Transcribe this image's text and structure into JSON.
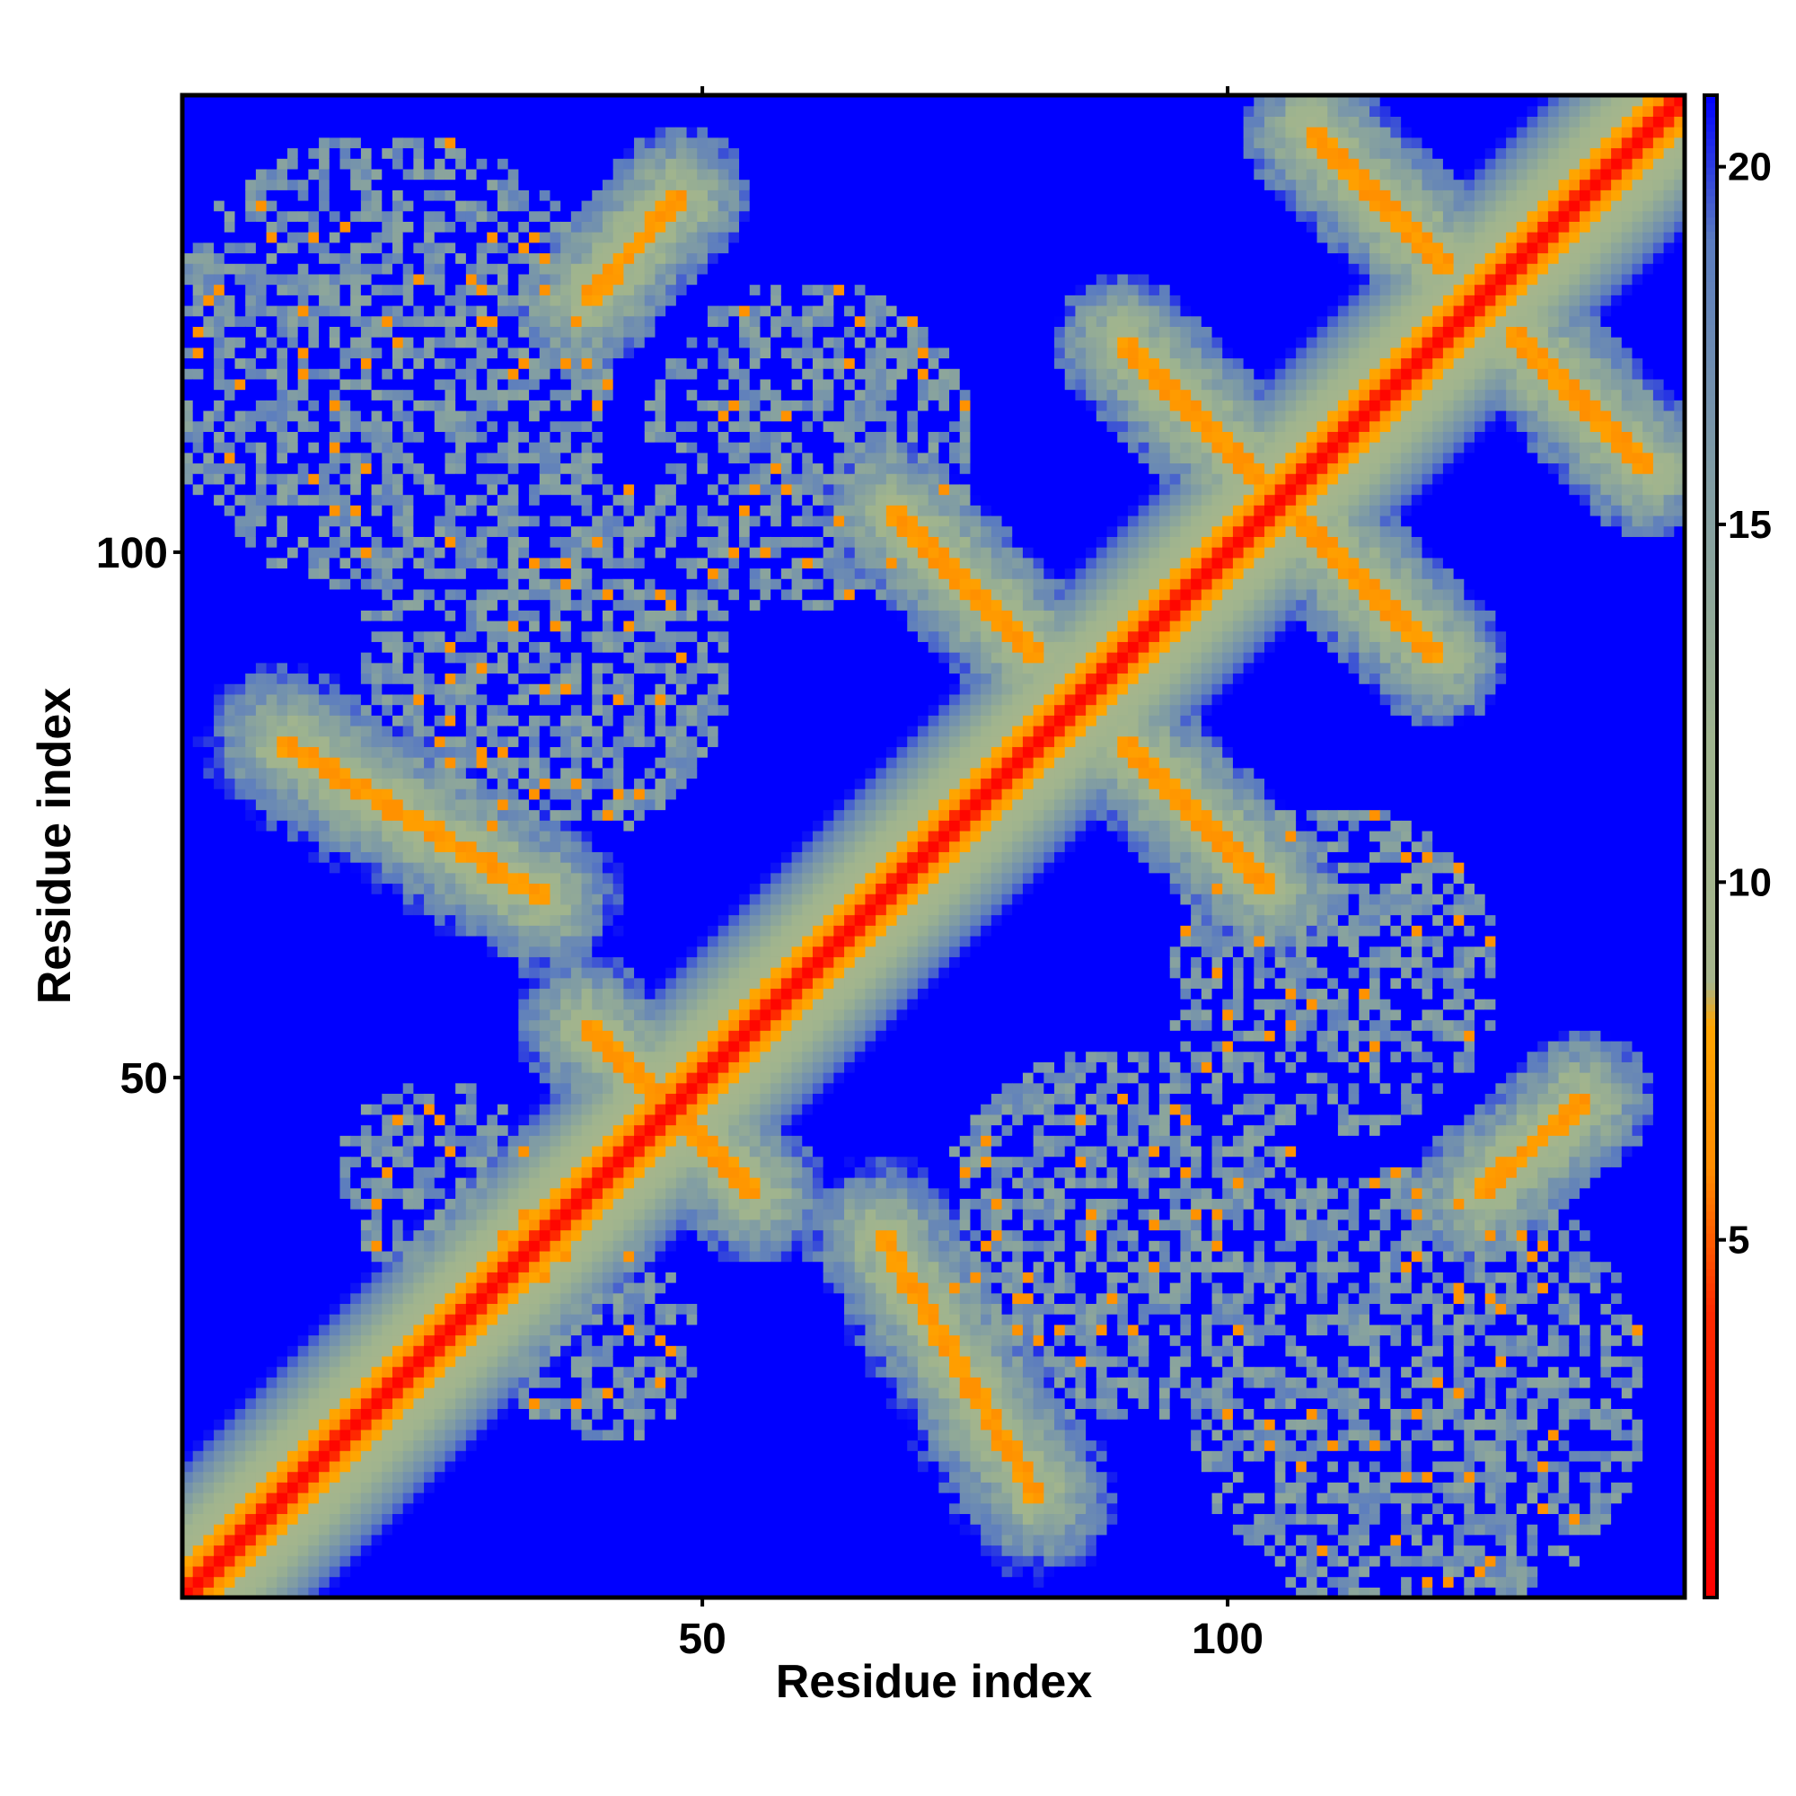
{
  "chart_data": {
    "type": "heatmap",
    "title": "",
    "xlabel": "Residue index",
    "ylabel": "Residue index",
    "n_residues": 143,
    "x_range": [
      1,
      143
    ],
    "y_range": [
      1,
      143
    ],
    "x_ticks": [
      50,
      100
    ],
    "y_ticks": [
      50,
      100
    ],
    "x_tick_labels": [
      "50",
      "100"
    ],
    "y_tick_labels": [
      "50",
      "100"
    ],
    "colorbar": {
      "range": [
        0,
        21
      ],
      "ticks": [
        5,
        10,
        15,
        20
      ],
      "tick_labels": [
        "5",
        "10",
        "15",
        "20"
      ],
      "stops": [
        {
          "value": 0,
          "color": "#ff0000"
        },
        {
          "value": 4,
          "color": "#ff2a00"
        },
        {
          "value": 6,
          "color": "#ff8c00"
        },
        {
          "value": 8,
          "color": "#ffa500"
        },
        {
          "value": 8.6,
          "color": "#a6b58c"
        },
        {
          "value": 12,
          "color": "#9fb48e"
        },
        {
          "value": 16,
          "color": "#7d9aa6"
        },
        {
          "value": 19,
          "color": "#5a7bc0"
        },
        {
          "value": 21,
          "color": "#0000ff"
        }
      ]
    },
    "features": [
      {
        "kind": "diagonal",
        "from": [
          1,
          1
        ],
        "to": [
          143,
          143
        ],
        "distance": 0.5
      },
      {
        "kind": "band",
        "from": [
          1,
          1
        ],
        "to": [
          60,
          60
        ],
        "halfwidth": 7,
        "note": "broad contact band near diagonal"
      },
      {
        "kind": "antiparallel",
        "from": [
          68,
          104
        ],
        "to": [
          82,
          90
        ],
        "halfwidth": 2.5
      },
      {
        "kind": "antiparallel",
        "from": [
          90,
          120
        ],
        "to": [
          103,
          107
        ],
        "halfwidth": 2.5
      },
      {
        "kind": "antiparallel",
        "from": [
          108,
          140
        ],
        "to": [
          121,
          127
        ],
        "halfwidth": 2.5
      },
      {
        "kind": "antiparallel",
        "from": [
          104,
          104
        ],
        "to": [
          117,
          91
        ],
        "halfwidth": 2.5
      },
      {
        "kind": "antiparallel",
        "from": [
          121,
          120
        ],
        "to": [
          138,
          103
        ],
        "halfwidth": 2.5
      },
      {
        "kind": "antiparallel",
        "from": [
          90,
          87
        ],
        "to": [
          103,
          74
        ],
        "halfwidth": 2.5
      },
      {
        "kind": "antiparallel",
        "from": [
          134,
          49
        ],
        "to": [
          128,
          43
        ],
        "halfwidth": 2.5
      },
      {
        "kind": "parallel",
        "from": [
          39,
          124
        ],
        "to": [
          48,
          134
        ],
        "halfwidth": 2.5
      },
      {
        "kind": "cross",
        "from": [
          39,
          55
        ],
        "to": [
          56,
          38
        ],
        "halfwidth": 3
      },
      {
        "kind": "cross",
        "from": [
          10,
          82
        ],
        "to": [
          35,
          67
        ],
        "halfwidth": 4
      }
    ]
  }
}
